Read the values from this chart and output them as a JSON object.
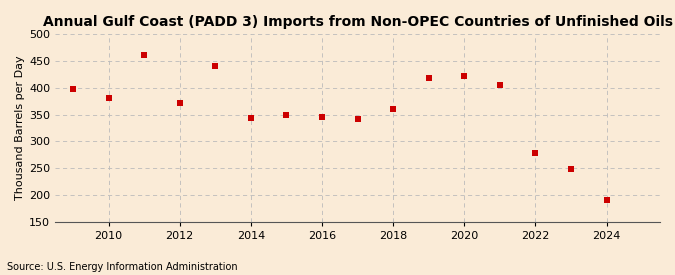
{
  "title": "Annual Gulf Coast (PADD 3) Imports from Non-OPEC Countries of Unfinished Oils",
  "ylabel": "Thousand Barrels per Day",
  "source": "Source: U.S. Energy Information Administration",
  "years": [
    2009,
    2010,
    2011,
    2012,
    2013,
    2014,
    2015,
    2016,
    2017,
    2018,
    2019,
    2020,
    2021,
    2022,
    2023,
    2024
  ],
  "values": [
    398,
    382,
    462,
    372,
    440,
    343,
    350,
    346,
    342,
    360,
    418,
    422,
    405,
    279,
    249,
    191
  ],
  "marker_color": "#cc0000",
  "marker": "s",
  "marker_size": 18,
  "ylim": [
    150,
    500
  ],
  "yticks": [
    150,
    200,
    250,
    300,
    350,
    400,
    450,
    500
  ],
  "xticks": [
    2010,
    2012,
    2014,
    2016,
    2018,
    2020,
    2022,
    2024
  ],
  "xlim": [
    2008.5,
    2025.5
  ],
  "background_color": "#faebd7",
  "grid_color": "#bbbbbb",
  "title_fontsize": 10,
  "label_fontsize": 8,
  "tick_fontsize": 8,
  "source_fontsize": 7
}
